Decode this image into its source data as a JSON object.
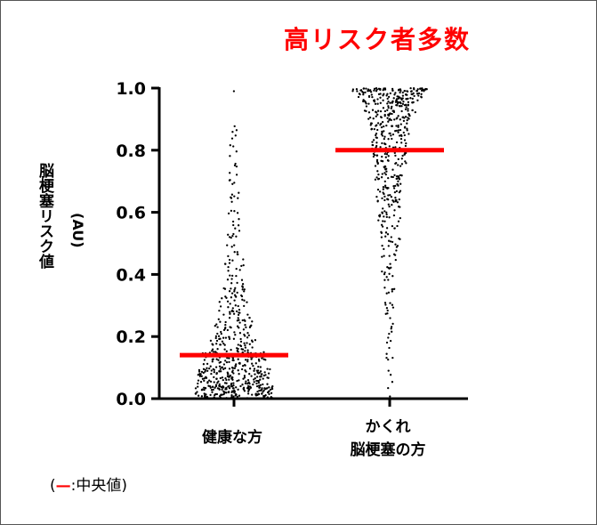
{
  "headline": "高リスク者多数",
  "legend": {
    "open": "(",
    "mark": "—",
    "text": ":中央値)",
    "mark_color": "#ff0000"
  },
  "chart_data": {
    "type": "scatter",
    "subtype": "dot-plot with median lines",
    "title": "",
    "ylabel": "脳梗塞リスク値",
    "ylabel_unit": "(AU)",
    "ylim": [
      0,
      1.0
    ],
    "yticks": [
      {
        "value": 0.0,
        "label": "0.0"
      },
      {
        "value": 0.2,
        "label": "0.2"
      },
      {
        "value": 0.4,
        "label": "0.4"
      },
      {
        "value": 0.6,
        "label": "0.6"
      },
      {
        "value": 0.8,
        "label": "0.8"
      },
      {
        "value": 1.0,
        "label": "1.0"
      }
    ],
    "grid": false,
    "median_color": "#ff0000",
    "point_color": "#000000",
    "groups": [
      {
        "label": "健康な方",
        "label_lines": [
          "健康な方"
        ],
        "median": 0.14,
        "density": [
          {
            "from": 0.0,
            "to": 0.05,
            "count": 170,
            "width": 0.75
          },
          {
            "from": 0.05,
            "to": 0.1,
            "count": 120,
            "width": 0.7
          },
          {
            "from": 0.1,
            "to": 0.15,
            "count": 85,
            "width": 0.62
          },
          {
            "from": 0.15,
            "to": 0.2,
            "count": 50,
            "width": 0.45
          },
          {
            "from": 0.2,
            "to": 0.25,
            "count": 35,
            "width": 0.38
          },
          {
            "from": 0.25,
            "to": 0.3,
            "count": 28,
            "width": 0.32
          },
          {
            "from": 0.3,
            "to": 0.35,
            "count": 22,
            "width": 0.28
          },
          {
            "from": 0.35,
            "to": 0.4,
            "count": 18,
            "width": 0.24
          },
          {
            "from": 0.4,
            "to": 0.45,
            "count": 12,
            "width": 0.2
          },
          {
            "from": 0.45,
            "to": 0.5,
            "count": 8,
            "width": 0.15
          },
          {
            "from": 0.5,
            "to": 0.55,
            "count": 8,
            "width": 0.14
          },
          {
            "from": 0.55,
            "to": 0.6,
            "count": 6,
            "width": 0.12
          },
          {
            "from": 0.6,
            "to": 0.65,
            "count": 6,
            "width": 0.12
          },
          {
            "from": 0.65,
            "to": 0.7,
            "count": 5,
            "width": 0.1
          },
          {
            "from": 0.7,
            "to": 0.75,
            "count": 5,
            "width": 0.1
          },
          {
            "from": 0.75,
            "to": 0.8,
            "count": 4,
            "width": 0.08
          },
          {
            "from": 0.8,
            "to": 0.85,
            "count": 4,
            "width": 0.08
          },
          {
            "from": 0.85,
            "to": 0.9,
            "count": 3,
            "width": 0.06
          },
          {
            "from": 0.98,
            "to": 1.0,
            "count": 1,
            "width": 0.02
          }
        ]
      },
      {
        "label": "かくれ脳梗塞の方",
        "label_lines": [
          "かくれ",
          "脳梗塞の方"
        ],
        "median": 0.8,
        "density": [
          {
            "from": 0.0,
            "to": 0.05,
            "count": 2,
            "width": 0.04
          },
          {
            "from": 0.05,
            "to": 0.1,
            "count": 3,
            "width": 0.06
          },
          {
            "from": 0.1,
            "to": 0.15,
            "count": 4,
            "width": 0.06
          },
          {
            "from": 0.15,
            "to": 0.2,
            "count": 4,
            "width": 0.06
          },
          {
            "from": 0.2,
            "to": 0.25,
            "count": 5,
            "width": 0.07
          },
          {
            "from": 0.25,
            "to": 0.3,
            "count": 6,
            "width": 0.08
          },
          {
            "from": 0.3,
            "to": 0.35,
            "count": 7,
            "width": 0.09
          },
          {
            "from": 0.35,
            "to": 0.4,
            "count": 8,
            "width": 0.1
          },
          {
            "from": 0.4,
            "to": 0.45,
            "count": 10,
            "width": 0.16
          },
          {
            "from": 0.45,
            "to": 0.5,
            "count": 12,
            "width": 0.16
          },
          {
            "from": 0.5,
            "to": 0.55,
            "count": 16,
            "width": 0.2
          },
          {
            "from": 0.55,
            "to": 0.6,
            "count": 20,
            "width": 0.22
          },
          {
            "from": 0.6,
            "to": 0.65,
            "count": 24,
            "width": 0.24
          },
          {
            "from": 0.65,
            "to": 0.7,
            "count": 28,
            "width": 0.26
          },
          {
            "from": 0.7,
            "to": 0.75,
            "count": 32,
            "width": 0.28
          },
          {
            "from": 0.75,
            "to": 0.8,
            "count": 38,
            "width": 0.32
          },
          {
            "from": 0.8,
            "to": 0.85,
            "count": 42,
            "width": 0.34
          },
          {
            "from": 0.85,
            "to": 0.9,
            "count": 50,
            "width": 0.38
          },
          {
            "from": 0.9,
            "to": 0.95,
            "count": 70,
            "width": 0.5
          },
          {
            "from": 0.95,
            "to": 0.99,
            "count": 90,
            "width": 0.62
          },
          {
            "from": 0.99,
            "to": 1.0,
            "count": 55,
            "width": 0.72
          }
        ]
      }
    ]
  }
}
